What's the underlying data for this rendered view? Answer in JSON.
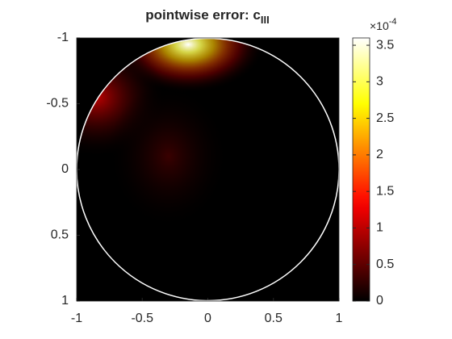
{
  "chart_data": {
    "type": "heatmap",
    "title": "pointwise error: c",
    "title_subscript": "III",
    "xlim": [
      -1,
      1
    ],
    "xticks": [
      -1,
      -0.5,
      0,
      0.5,
      1
    ],
    "ylim": [
      -1,
      1
    ],
    "yticks": [
      -1,
      -0.5,
      0,
      0.5,
      1
    ],
    "y_reversed": true,
    "colormap": "hot",
    "clim": [
      0,
      3.6
    ],
    "cticks": [
      0,
      0.5,
      1,
      1.5,
      2,
      2.5,
      3,
      3.5
    ],
    "colorbar_exponent_base": "×10",
    "colorbar_exponent": "-4",
    "hotspots": {
      "x": [
        -0.15,
        -0.85,
        -0.3
      ],
      "y": [
        -0.95,
        -0.55,
        -0.1
      ],
      "values": [
        3.6,
        1.0,
        0.3
      ]
    }
  }
}
